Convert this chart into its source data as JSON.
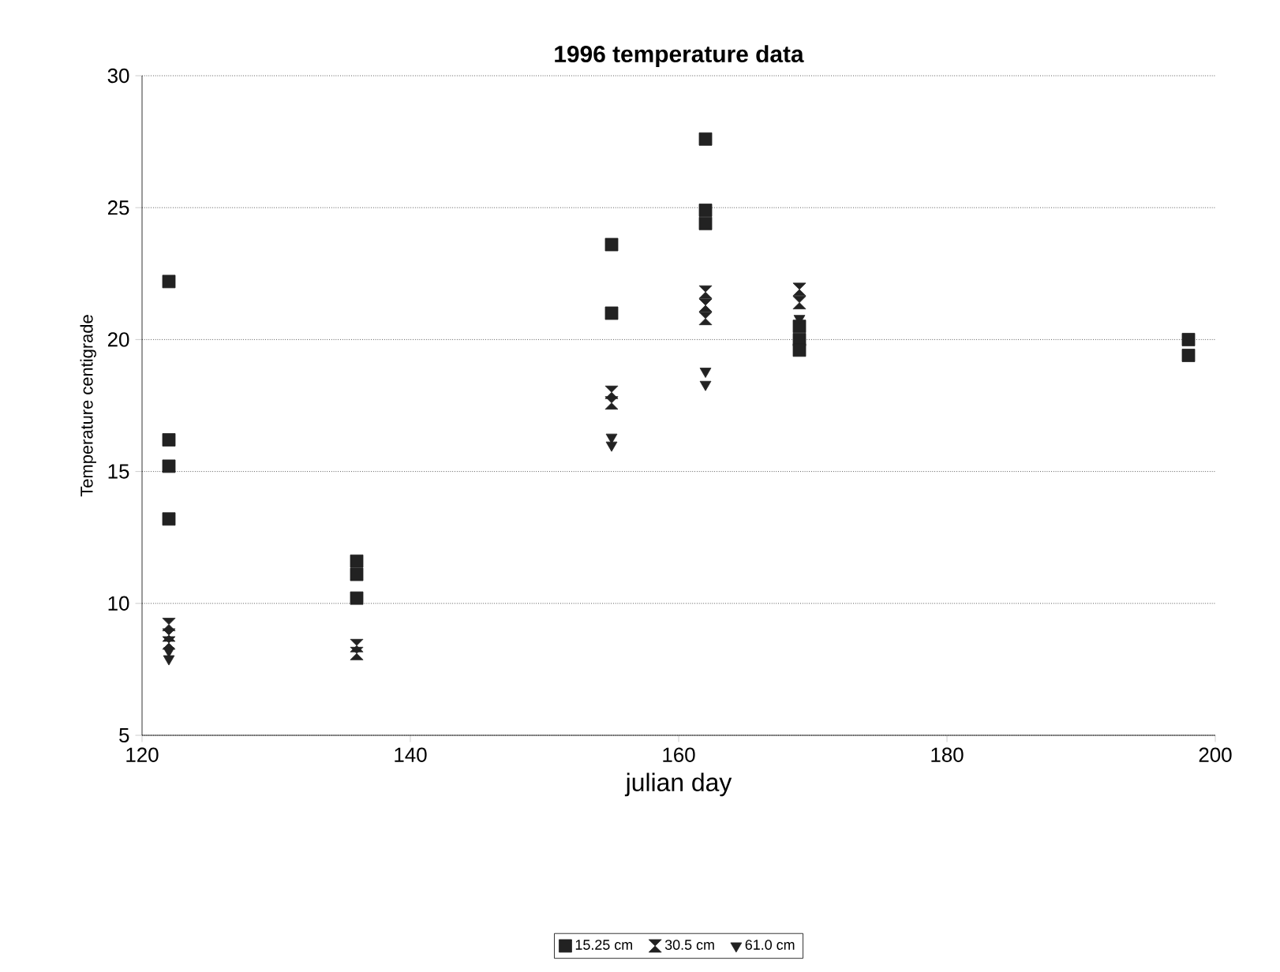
{
  "chart_data": {
    "type": "scatter",
    "title": "1996 temperature data",
    "xlabel": "julian day",
    "ylabel": "Temperature centigrade",
    "xlim": [
      120,
      200
    ],
    "xticks": [
      120,
      140,
      160,
      180,
      200
    ],
    "ylim": [
      5,
      30
    ],
    "yticks": [
      5,
      10,
      15,
      20,
      25,
      30
    ],
    "grid": "y",
    "legend": "bottom",
    "series": [
      {
        "name": "15.25 cm",
        "color": "#222222",
        "marker": "square",
        "x": [
          122,
          122,
          122,
          122,
          136,
          136,
          136,
          155,
          155,
          162,
          162,
          162,
          169,
          169,
          169,
          198,
          198
        ],
        "values": [
          22.2,
          16.2,
          15.2,
          13.2,
          11.6,
          11.1,
          10.2,
          23.6,
          21.0,
          27.6,
          24.9,
          24.4,
          20.5,
          20.0,
          19.6,
          20.0,
          19.4
        ]
      },
      {
        "name": "30.5 cm",
        "color": "#222222",
        "x": [
          122,
          122,
          122,
          136,
          136,
          155,
          155,
          162,
          162,
          162,
          169,
          169
        ],
        "values": [
          9.2,
          8.8,
          8.5,
          8.4,
          8.1,
          18.0,
          17.6,
          21.8,
          21.3,
          20.8,
          21.9,
          21.4
        ]
      },
      {
        "name": "61.0 cm",
        "color": "#222222",
        "marker": "triangle",
        "x": [
          122,
          122,
          155,
          155,
          162,
          162,
          169,
          198
        ],
        "values": [
          8.2,
          7.9,
          16.3,
          16.0,
          18.8,
          18.3,
          20.8,
          20.1
        ]
      }
    ]
  }
}
